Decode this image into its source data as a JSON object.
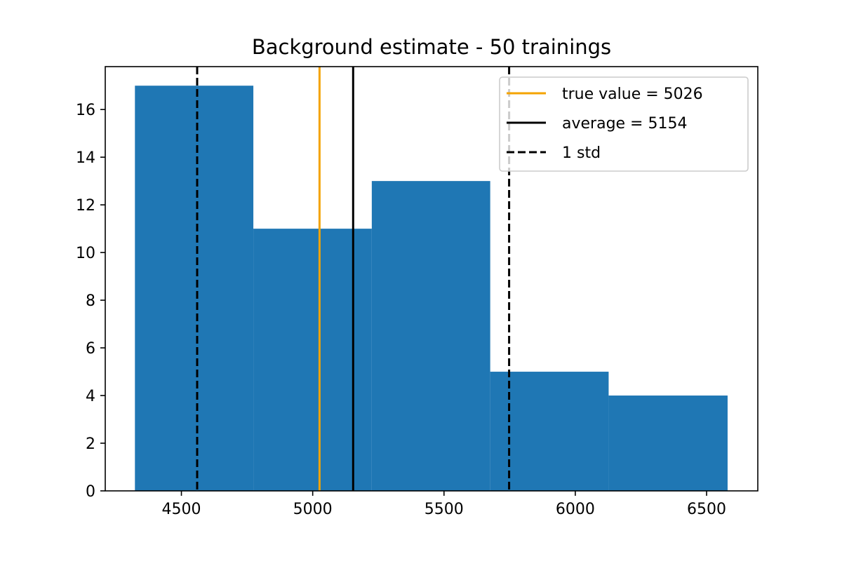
{
  "chart_data": {
    "type": "bar",
    "title": "Background estimate - 50 trainings",
    "xlabel": "",
    "ylabel": "",
    "xlim": [
      4210,
      6695
    ],
    "ylim": [
      0,
      17.8
    ],
    "grid": false,
    "bins": [
      {
        "x0": 4323,
        "x1": 4774,
        "count": 17
      },
      {
        "x0": 4774,
        "x1": 5225,
        "count": 11
      },
      {
        "x0": 5225,
        "x1": 5676,
        "count": 13
      },
      {
        "x0": 5676,
        "x1": 6127,
        "count": 5
      },
      {
        "x0": 6127,
        "x1": 6580,
        "count": 4
      }
    ],
    "x_ticks": [
      4500,
      5000,
      5500,
      6000,
      6500
    ],
    "y_ticks": [
      0,
      2,
      4,
      6,
      8,
      10,
      12,
      14,
      16
    ],
    "vlines": [
      {
        "name": "true value = 5026",
        "x": 5026,
        "color": "#f4a300",
        "style": "solid"
      },
      {
        "name": "average = 5154",
        "x": 5154,
        "color": "#000000",
        "style": "solid"
      },
      {
        "name": "1 std",
        "x": 4560,
        "color": "#000000",
        "style": "dashed"
      },
      {
        "name": "1 std",
        "x": 5748,
        "color": "#000000",
        "style": "dashed"
      }
    ],
    "legend": {
      "placement": "top-right",
      "entries": [
        {
          "label": "true value = 5026",
          "color": "#f4a300",
          "style": "solid"
        },
        {
          "label": "average = 5154",
          "color": "#000000",
          "style": "solid"
        },
        {
          "label": "1 std",
          "color": "#000000",
          "style": "dashed"
        }
      ]
    },
    "bar_color": "#1f77b4"
  }
}
